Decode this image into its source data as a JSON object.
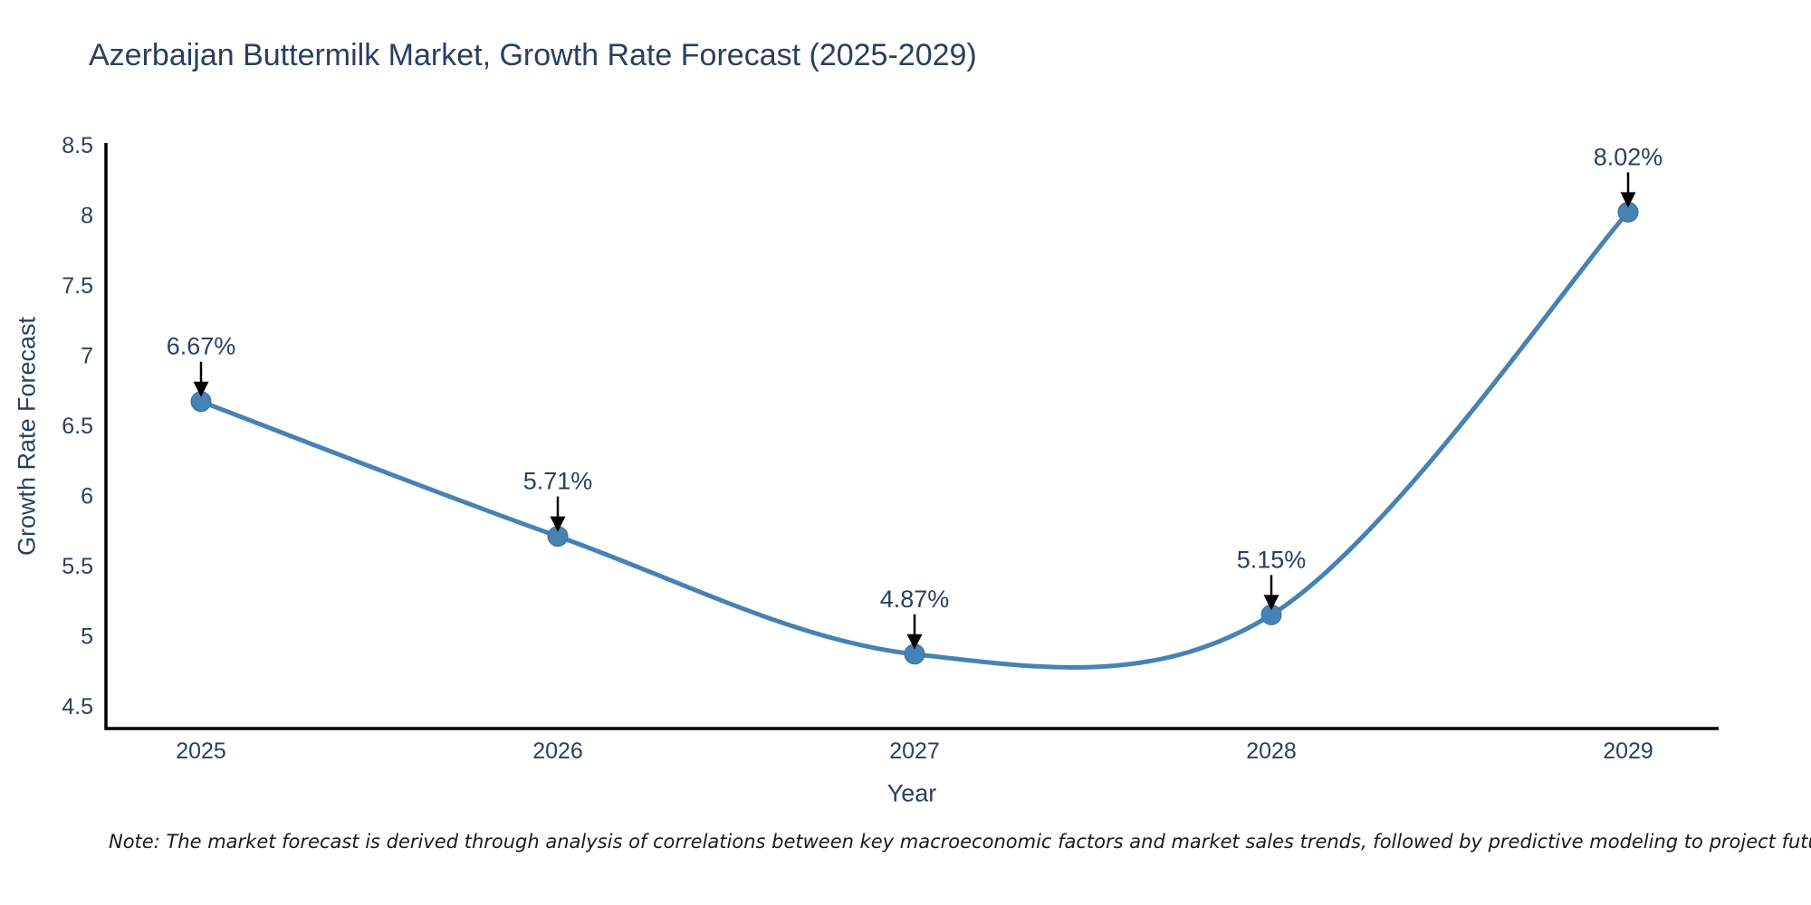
{
  "chart_data": {
    "type": "line",
    "title": "Azerbaijan Buttermilk Market, Growth Rate Forecast (2025-2029)",
    "xlabel": "Year",
    "ylabel": "Growth Rate Forecast",
    "x": [
      2025,
      2026,
      2027,
      2028,
      2029
    ],
    "values": [
      6.67,
      5.71,
      4.87,
      5.15,
      8.02
    ],
    "point_labels": [
      "6.67%",
      "5.71%",
      "4.87%",
      "5.15%",
      "8.02%"
    ],
    "yticks": [
      4.5,
      5,
      5.5,
      6,
      6.5,
      7,
      7.5,
      8,
      8.5
    ],
    "ylim": [
      4.34,
      8.5
    ],
    "line_shape": "spline",
    "grid": false,
    "legend": "none",
    "colors": {
      "line": "#4682b4",
      "marker_fill": "#4682b4",
      "marker_edge": "#3a6d99",
      "axis_line": "#000000",
      "text": "#2a3f5f",
      "annotation_text": "#2a3f5f",
      "annotation_arrow": "#000000",
      "note_text": "#1a1a1a"
    },
    "note": "Note: The market forecast is derived through analysis of correlations between key macroeconomic factors and market sales trends, followed by predictive modeling to project future sales"
  }
}
